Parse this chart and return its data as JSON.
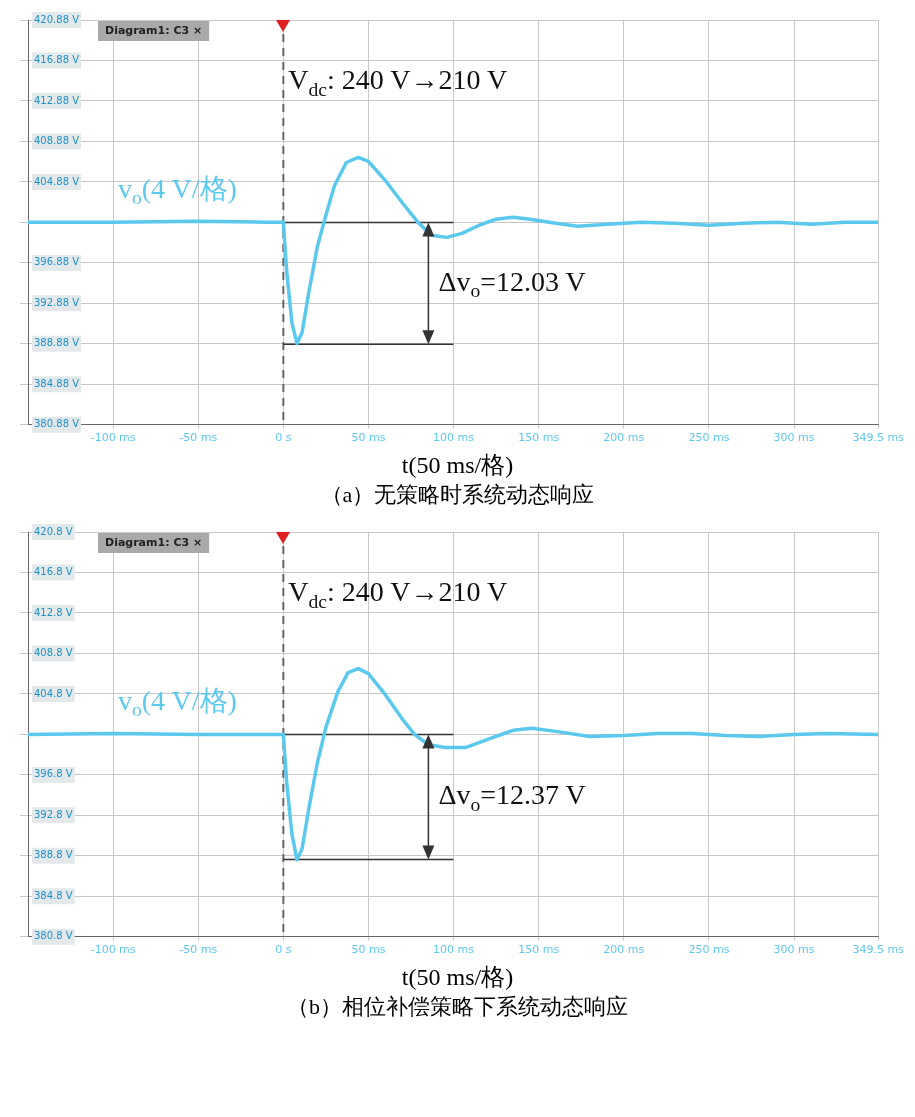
{
  "chart_data": [
    {
      "type": "line",
      "title": "（a）无策略时系统动态响应",
      "xlabel": "t(50 ms/格)",
      "legend": false,
      "grid": true,
      "marker": "none",
      "line_style": "solid",
      "xlim": [
        -150,
        349.5
      ],
      "xticks": [
        {
          "value": -100,
          "label": "-100 ms"
        },
        {
          "value": -50,
          "label": "-50 ms"
        },
        {
          "value": 0,
          "label": "0 s"
        },
        {
          "value": 50,
          "label": "50 ms"
        },
        {
          "value": 100,
          "label": "100 ms"
        },
        {
          "value": 150,
          "label": "150 ms"
        },
        {
          "value": 200,
          "label": "200 ms"
        },
        {
          "value": 250,
          "label": "250 ms"
        },
        {
          "value": 300,
          "label": "300 ms"
        },
        {
          "value": 349.5,
          "label": "349.5 ms"
        }
      ],
      "ylim": [
        380.88,
        420.88
      ],
      "yticks": [
        {
          "value": 380.88,
          "label": "380.88 V"
        },
        {
          "value": 384.88,
          "label": "384.88 V"
        },
        {
          "value": 388.88,
          "label": "388.88 V"
        },
        {
          "value": 392.88,
          "label": "392.88 V"
        },
        {
          "value": 396.88,
          "label": "396.88 V"
        },
        {
          "value": 400.88,
          "label": null
        },
        {
          "value": 404.88,
          "label": "404.88 V"
        },
        {
          "value": 408.88,
          "label": "408.88 V"
        },
        {
          "value": 412.88,
          "label": "412.88 V"
        },
        {
          "value": 416.88,
          "label": "416.88 V"
        },
        {
          "value": 420.88,
          "label": "420.88 V"
        }
      ],
      "series": [
        {
          "name": "v$_{o}$(4 V/格)",
          "color": "#5bc8ee",
          "x": [
            -150,
            -100,
            -50,
            -10,
            0,
            2,
            5,
            8,
            11,
            15,
            20,
            24,
            30,
            37,
            44,
            50,
            60,
            70,
            79,
            87,
            96,
            105,
            115,
            125,
            135,
            145,
            160,
            173,
            190,
            210,
            230,
            250,
            270,
            290,
            310,
            330,
            349.5
          ],
          "values": [
            400.9,
            400.9,
            401,
            400.9,
            400.9,
            396,
            391,
            388.9,
            390,
            394,
            398.5,
            401,
            404.5,
            406.8,
            407.3,
            406.9,
            405,
            402.8,
            400.9,
            399.6,
            399.4,
            399.8,
            400.6,
            401.2,
            401.4,
            401.2,
            400.8,
            400.5,
            400.7,
            400.9,
            400.8,
            400.6,
            400.8,
            400.9,
            400.7,
            400.9,
            400.9
          ]
        }
      ],
      "ref_lines": [
        {
          "axis": "x",
          "value": 0,
          "color": "#666666",
          "line_style": "dashed"
        },
        {
          "axis": "y",
          "value": 400.88,
          "color": "#333333"
        },
        {
          "axis": "y",
          "value": 388.85,
          "color": "#333333"
        }
      ],
      "annotations": [
        "Diagram1: C3 ×",
        "V$_{dc}$: 240 V→210 V",
        "Δv$_{o}$=12.03 V"
      ]
    },
    {
      "type": "line",
      "title": "（b）相位补偿策略下系统动态响应",
      "xlabel": "t(50 ms/格)",
      "legend": false,
      "grid": true,
      "marker": "none",
      "line_style": "solid",
      "xlim": [
        -150,
        349.5
      ],
      "xticks": [
        {
          "value": -100,
          "label": "-100 ms"
        },
        {
          "value": -50,
          "label": "-50 ms"
        },
        {
          "value": 0,
          "label": "0 s"
        },
        {
          "value": 50,
          "label": "50 ms"
        },
        {
          "value": 100,
          "label": "100 ms"
        },
        {
          "value": 150,
          "label": "150 ms"
        },
        {
          "value": 200,
          "label": "200 ms"
        },
        {
          "value": 250,
          "label": "250 ms"
        },
        {
          "value": 300,
          "label": "300 ms"
        },
        {
          "value": 349.5,
          "label": "349.5 ms"
        }
      ],
      "ylim": [
        380.8,
        420.8
      ],
      "yticks": [
        {
          "value": 380.8,
          "label": "380.8 V"
        },
        {
          "value": 384.8,
          "label": "384.8 V"
        },
        {
          "value": 388.8,
          "label": "388.8 V"
        },
        {
          "value": 392.8,
          "label": "392.8 V"
        },
        {
          "value": 396.8,
          "label": "396.8 V"
        },
        {
          "value": 400.8,
          "label": null
        },
        {
          "value": 404.8,
          "label": "404.8 V"
        },
        {
          "value": 408.8,
          "label": "408.8 V"
        },
        {
          "value": 412.8,
          "label": "412.8 V"
        },
        {
          "value": 416.8,
          "label": "416.8 V"
        },
        {
          "value": 420.8,
          "label": "420.8 V"
        }
      ],
      "series": [
        {
          "name": "v$_{o}$(4 V/格)",
          "color": "#5bc8ee",
          "x": [
            -150,
            -100,
            -50,
            0,
            2,
            5,
            8,
            11,
            15,
            20,
            25,
            32,
            38,
            44,
            50,
            60,
            70,
            77,
            85,
            95,
            107,
            120,
            135,
            146,
            160,
            180,
            200,
            220,
            240,
            260,
            280,
            300,
            320,
            349.5
          ],
          "values": [
            400.8,
            400.9,
            400.8,
            400.8,
            396,
            391,
            388.4,
            389.5,
            393.5,
            398,
            401.5,
            405,
            406.9,
            407.3,
            406.8,
            404.7,
            402.3,
            400.8,
            399.8,
            399.5,
            399.5,
            400.3,
            401.2,
            401.4,
            401.1,
            400.6,
            400.7,
            400.9,
            400.9,
            400.7,
            400.6,
            400.8,
            400.9,
            400.8
          ]
        }
      ],
      "ref_lines": [
        {
          "axis": "x",
          "value": 0,
          "color": "#666666",
          "line_style": "dashed"
        },
        {
          "axis": "y",
          "value": 400.8,
          "color": "#333333"
        },
        {
          "axis": "y",
          "value": 388.43,
          "color": "#333333"
        }
      ],
      "annotations": [
        "Diagram1: C3 ×",
        "V$_{dc}$: 240 V→210 V",
        "Δv$_{o}$=12.37 V"
      ]
    }
  ]
}
